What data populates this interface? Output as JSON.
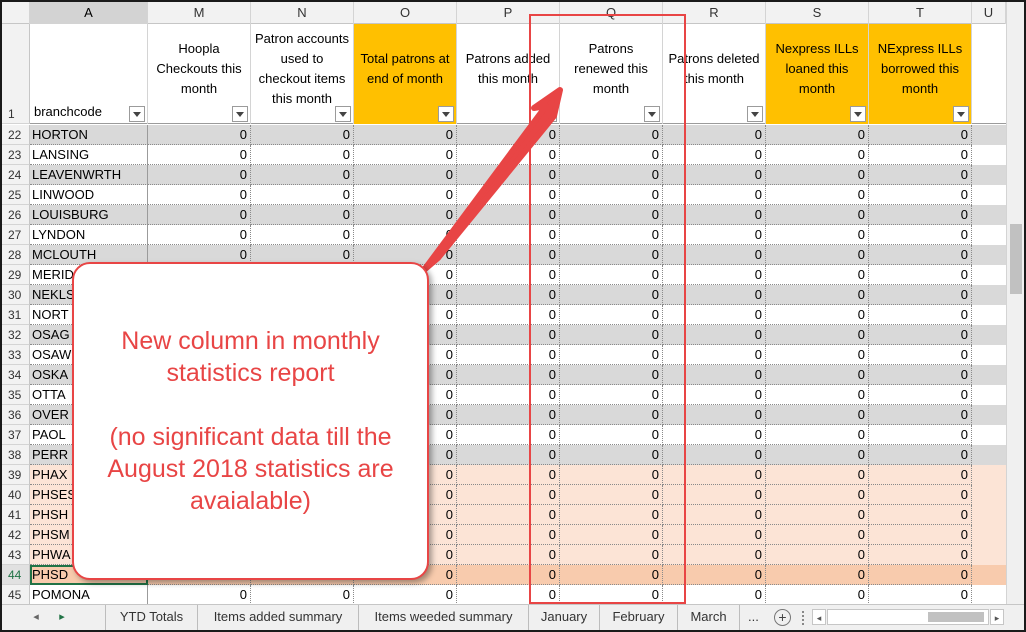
{
  "columns": {
    "letters": [
      "A",
      "M",
      "N",
      "O",
      "P",
      "Q",
      "R",
      "S",
      "T",
      "U"
    ]
  },
  "header_row": {
    "row_number": "1",
    "cells": [
      {
        "text": "branchcode",
        "orange": false
      },
      {
        "text": "Hoopla Checkouts this month",
        "orange": false
      },
      {
        "text": "Patron accounts used to checkout items this month",
        "orange": false
      },
      {
        "text": "Total patrons at end of month",
        "orange": true
      },
      {
        "text": "Patrons added this month",
        "orange": false
      },
      {
        "text": "Patrons renewed this month",
        "orange": false
      },
      {
        "text": "Patrons deleted this month",
        "orange": false
      },
      {
        "text": "Nexpress ILLs loaned this month",
        "orange": true
      },
      {
        "text": "NExpress ILLs borrowed this month",
        "orange": true
      }
    ]
  },
  "rows": [
    {
      "num": "22",
      "name": "HORTON",
      "style": "gray"
    },
    {
      "num": "23",
      "name": "LANSING",
      "style": "white"
    },
    {
      "num": "24",
      "name": "LEAVENWRTH",
      "style": "gray"
    },
    {
      "num": "25",
      "name": "LINWOOD",
      "style": "white"
    },
    {
      "num": "26",
      "name": "LOUISBURG",
      "style": "gray"
    },
    {
      "num": "27",
      "name": "LYNDON",
      "style": "white"
    },
    {
      "num": "28",
      "name": "MCLOUTH",
      "style": "gray"
    },
    {
      "num": "29",
      "name": "MERID",
      "style": "white"
    },
    {
      "num": "30",
      "name": "NEKLS",
      "style": "gray"
    },
    {
      "num": "31",
      "name": "NORT",
      "style": "white"
    },
    {
      "num": "32",
      "name": "OSAG",
      "style": "gray"
    },
    {
      "num": "33",
      "name": "OSAW",
      "style": "white"
    },
    {
      "num": "34",
      "name": "OSKA",
      "style": "gray"
    },
    {
      "num": "35",
      "name": "OTTA",
      "style": "white"
    },
    {
      "num": "36",
      "name": "OVER",
      "style": "gray"
    },
    {
      "num": "37",
      "name": "PAOL",
      "style": "white"
    },
    {
      "num": "38",
      "name": "PERR",
      "style": "gray"
    },
    {
      "num": "39",
      "name": "PHAX",
      "style": "peach"
    },
    {
      "num": "40",
      "name": "PHSES",
      "style": "peach"
    },
    {
      "num": "41",
      "name": "PHSH",
      "style": "peach"
    },
    {
      "num": "42",
      "name": "PHSM",
      "style": "peach"
    },
    {
      "num": "43",
      "name": "PHWA",
      "style": "peach"
    },
    {
      "num": "44",
      "name": "PHSD",
      "style": "dpeach"
    },
    {
      "num": "45",
      "name": "POMONA",
      "style": "white"
    }
  ],
  "cell_value": "0",
  "selected_row": "44",
  "sheet_tabs": [
    "YTD Totals",
    "Items added summary",
    "Items weeded summary",
    "January",
    "February",
    "March"
  ],
  "tab_more": "...",
  "tab_add": "+",
  "callout": {
    "line1": "New column in monthly statistics report",
    "line2": "(no significant data till the August 2018 statistics are avaialable)"
  },
  "colors": {
    "annotation_red": "#e84545",
    "header_orange": "#ffc000",
    "row_gray": "#d9d9d9",
    "row_peach": "#fce4d6",
    "row_selected_peach": "#f8cbad"
  }
}
